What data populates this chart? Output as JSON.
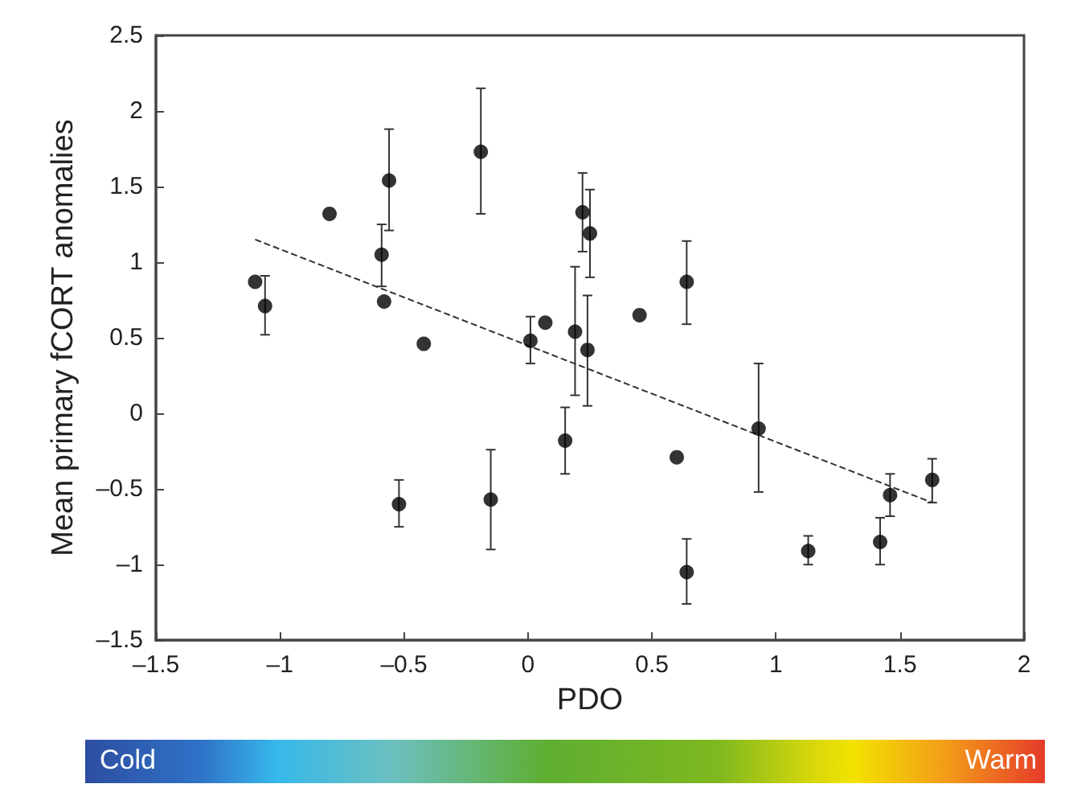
{
  "chart_data": {
    "type": "scatter",
    "xlabel": "PDO",
    "ylabel": "Mean primary fCORT anomalies",
    "xlim": [
      -1.5,
      2
    ],
    "ylim": [
      -1.5,
      2.5
    ],
    "xticks": [
      {
        "value": -1.5,
        "label": "–1.5"
      },
      {
        "value": -1,
        "label": "–1"
      },
      {
        "value": -0.5,
        "label": "–0.5"
      },
      0,
      0.5,
      1,
      1.5,
      2
    ],
    "yticks": [
      {
        "value": -1.5,
        "label": "–1.5"
      },
      {
        "value": -1,
        "label": "–1"
      },
      {
        "value": -0.5,
        "label": "–0.5"
      },
      0,
      0.5,
      1,
      1.5,
      2,
      2.5
    ],
    "grid": false,
    "marker": "circle",
    "series": [
      {
        "color": "#000000",
        "x": [
          -1.1,
          -1.06,
          -0.8,
          -0.59,
          -0.56,
          -0.58,
          -0.42,
          -0.52,
          -0.19,
          -0.15,
          0.01,
          0.07,
          0.15,
          0.19,
          0.22,
          0.25,
          0.24,
          0.45,
          0.64,
          0.6,
          0.64,
          0.93,
          1.13,
          1.42,
          1.46,
          1.63
        ],
        "values": [
          0.87,
          0.71,
          1.32,
          1.05,
          1.54,
          0.74,
          0.46,
          -0.6,
          1.73,
          -0.57,
          0.48,
          0.6,
          -0.18,
          0.54,
          1.33,
          1.19,
          0.42,
          0.65,
          0.87,
          -0.29,
          -1.05,
          -0.1,
          -0.91,
          -0.85,
          -0.54,
          -0.44
        ],
        "errors": [
          null,
          [
            0.52,
            0.91
          ],
          null,
          [
            0.84,
            1.25
          ],
          [
            1.21,
            1.88
          ],
          null,
          null,
          [
            -0.75,
            -0.44
          ],
          [
            1.32,
            2.15
          ],
          [
            -0.9,
            -0.24
          ],
          [
            0.33,
            0.64
          ],
          null,
          [
            -0.4,
            0.04
          ],
          [
            0.12,
            0.97
          ],
          [
            1.07,
            1.59
          ],
          [
            0.9,
            1.48
          ],
          [
            0.05,
            0.78
          ],
          null,
          [
            0.59,
            1.14
          ],
          null,
          [
            -1.26,
            -0.83
          ],
          [
            -0.52,
            0.33
          ],
          [
            -1.0,
            -0.81
          ],
          [
            -1.0,
            -0.69
          ],
          [
            -0.68,
            -0.4
          ],
          [
            -0.59,
            -0.3
          ]
        ]
      },
      {
        "type": "line",
        "color": "#333333",
        "line_style": "dashed",
        "marker": "none",
        "x": [
          -1.1,
          1.63
        ],
        "values": [
          1.15,
          -0.59
        ]
      }
    ],
    "annotations": [
      "Cold",
      "Warm"
    ]
  }
}
